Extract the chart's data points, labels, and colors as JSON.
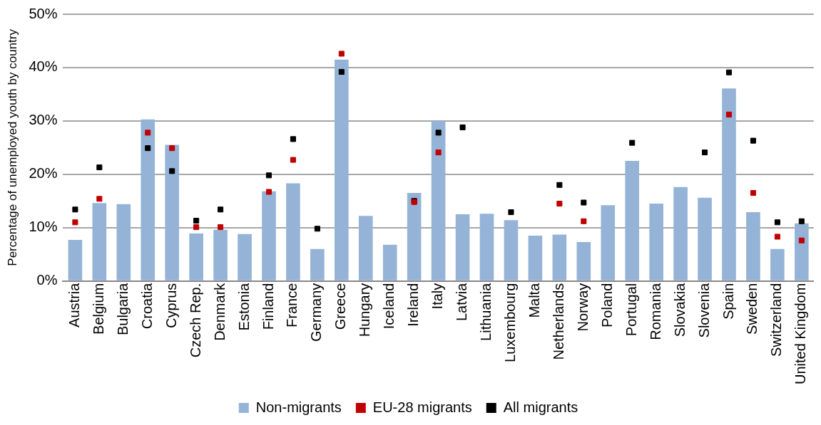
{
  "chart_data": {
    "type": "bar",
    "ylabel": "Percentage of unemployed youth by country",
    "categories": [
      "Austria",
      "Belgium",
      "Bulgaria",
      "Croatia",
      "Cyprus",
      "Czech Rep.",
      "Denmark",
      "Estonia",
      "Finland",
      "France",
      "Germany",
      "Greece",
      "Hungary",
      "Iceland",
      "Ireland",
      "Italy",
      "Latvia",
      "Lithuania",
      "Luxembourg",
      "Malta",
      "Netherlands",
      "Norway",
      "Poland",
      "Portugal",
      "Romania",
      "Slovakia",
      "Slovenia",
      "Spain",
      "Sweden",
      "Switzerland",
      "United Kingdom"
    ],
    "series": [
      {
        "name": "Non-migrants",
        "color": "#95b3d7",
        "values": [
          7.7,
          14.6,
          14.4,
          30.3,
          25.5,
          8.9,
          9.6,
          8.8,
          16.8,
          18.3,
          6.0,
          41.5,
          12.2,
          6.8,
          16.5,
          30.0,
          12.5,
          12.6,
          11.4,
          8.5,
          8.7,
          7.3,
          14.2,
          22.5,
          14.5,
          17.6,
          15.6,
          36.1,
          12.9,
          6.0,
          10.8
        ]
      },
      {
        "name": "EU-28 migrants",
        "type": "scatter",
        "marker": "square",
        "color": "#c00000",
        "values": [
          11.0,
          15.4,
          null,
          27.8,
          24.9,
          10.1,
          10.1,
          null,
          16.7,
          22.7,
          null,
          42.6,
          null,
          null,
          14.8,
          24.1,
          null,
          null,
          null,
          null,
          14.5,
          11.2,
          null,
          null,
          null,
          null,
          null,
          31.2,
          16.5,
          8.3,
          7.6
        ]
      },
      {
        "name": "All migrants",
        "type": "scatter",
        "marker": "square",
        "color": "#000000",
        "values": [
          13.4,
          21.3,
          null,
          24.9,
          20.6,
          11.3,
          13.4,
          null,
          19.8,
          26.6,
          9.8,
          39.2,
          null,
          null,
          15.0,
          27.8,
          28.8,
          null,
          12.9,
          null,
          18.0,
          14.7,
          null,
          25.9,
          null,
          null,
          24.1,
          39.1,
          26.3,
          11.0,
          11.2
        ]
      }
    ],
    "ylim": [
      0,
      50
    ],
    "yticks": [
      {
        "value": 0,
        "label": "0%"
      },
      {
        "value": 10,
        "label": "10%"
      },
      {
        "value": 20,
        "label": "20%"
      },
      {
        "value": 30,
        "label": "30%"
      },
      {
        "value": 40,
        "label": "40%"
      },
      {
        "value": 50,
        "label": "50%"
      }
    ],
    "grid": "y",
    "legend": "bottom"
  }
}
